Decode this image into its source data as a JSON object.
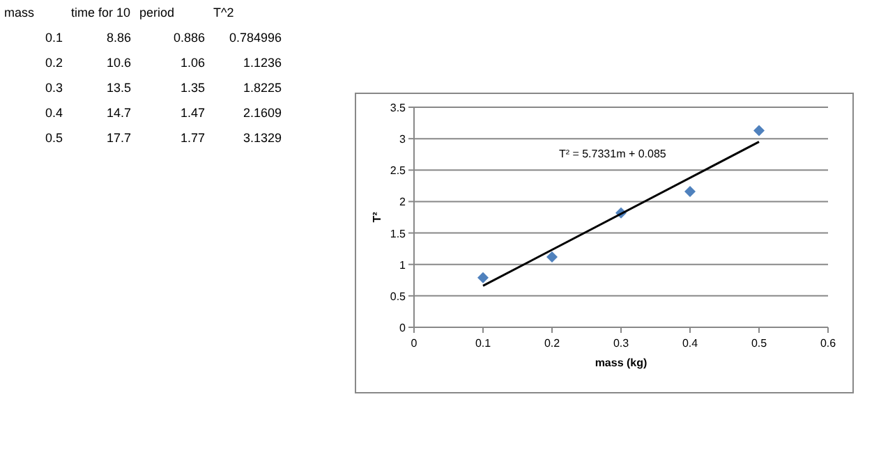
{
  "chart_data": {
    "type": "scatter",
    "xlabel": "mass (kg)",
    "ylabel": "T²",
    "x": [
      0.1,
      0.2,
      0.3,
      0.4,
      0.5
    ],
    "series": [
      {
        "color": "#4f81bd",
        "marker": "diamond",
        "values": [
          0.79,
          1.12,
          1.82,
          2.16,
          3.13
        ]
      },
      {
        "type": "line",
        "color": "#000000",
        "marker": "none",
        "x": [
          0.1,
          0.5
        ],
        "values": [
          0.66,
          2.95
        ]
      }
    ],
    "xlim": [
      0,
      0.6
    ],
    "xticks": [
      0,
      0.1,
      0.2,
      0.3,
      0.4,
      0.5,
      0.6
    ],
    "ylim": [
      0,
      3.5
    ],
    "yticks": [
      0,
      0.5,
      1,
      1.5,
      2,
      2.5,
      3,
      3.5
    ],
    "grid": "y",
    "annotations": [
      "T² = 5.7331m + 0.085",
      "mass",
      "time for 10",
      "period",
      "T^2",
      "0.1",
      "8.86",
      "0.886",
      "0.784996",
      "0.2",
      "10.6",
      "1.06",
      "1.1236",
      "0.3",
      "13.5",
      "1.35",
      "1.8225",
      "0.4",
      "14.7",
      "1.47",
      "2.1609",
      "0.5",
      "17.7",
      "1.77",
      "3.1329"
    ]
  }
}
